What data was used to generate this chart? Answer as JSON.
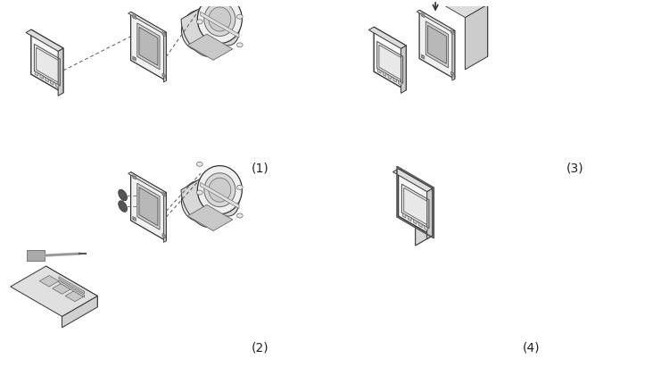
{
  "background_color": "#ffffff",
  "fig_width": 7.5,
  "fig_height": 4.11,
  "dpi": 100,
  "labels": [
    "(1)",
    "(2)",
    "(3)",
    "(4)"
  ],
  "label_fontsize": 10,
  "text_color": "#222222",
  "line_color": "#333333",
  "light_gray": "#aaaaaa",
  "mid_gray": "#888888",
  "face_white": "#ffffff",
  "face_light": "#eeeeee",
  "face_mid": "#cccccc",
  "face_dark": "#999999"
}
